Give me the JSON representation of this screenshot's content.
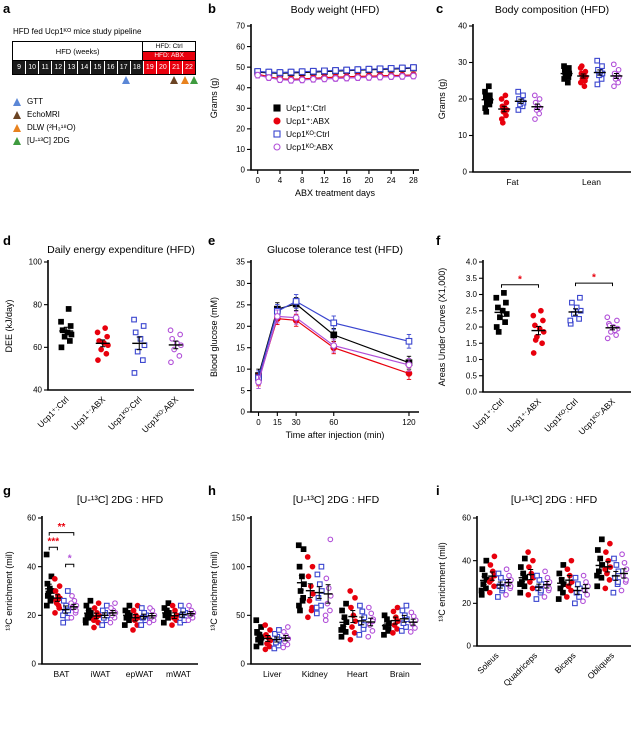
{
  "figure": {
    "bg": "#ffffff"
  },
  "groups": [
    {
      "name": "Ucp1⁺:Ctrl",
      "marker": "square",
      "fill": "solid",
      "color": "#000000"
    },
    {
      "name": "Ucp1⁺:ABX",
      "marker": "circle",
      "fill": "solid",
      "color": "#e8000d"
    },
    {
      "name": "Ucp1ᴷᴼ:Ctrl",
      "marker": "square",
      "fill": "open",
      "color": "#3a45cf"
    },
    {
      "name": "Ucp1ᴷᴼ:ABX",
      "marker": "circle",
      "fill": "open",
      "color": "#b14fd8"
    }
  ],
  "pipeline": {
    "panel": "a",
    "title": "HFD fed Ucp1ᴷᴼ mice study pipeline",
    "weeks_label": "HFD (weeks)",
    "ctrl_label": "HFD: Ctrl",
    "abx_label": "HFD: ABX",
    "weeks_black": [
      "9",
      "10",
      "11",
      "12",
      "13",
      "14",
      "15",
      "16",
      "17",
      "18"
    ],
    "weeks_red": [
      "19",
      "20",
      "21",
      "22"
    ],
    "timeline_markers": [
      {
        "name": "GTT",
        "x_pct": 62,
        "color": "#5b87d6"
      },
      {
        "name": "EchoMRI",
        "x_pct": 88,
        "color": "#6b4423"
      },
      {
        "name": "DLW",
        "x_pct": 94,
        "color": "#e8821e"
      },
      {
        "name": "2DG",
        "x_pct": 99,
        "color": "#3f9b3f"
      }
    ],
    "legend": [
      {
        "label": "GTT",
        "color": "#5b87d6"
      },
      {
        "label": "EchoMRI",
        "color": "#6b4423"
      },
      {
        "label": "DLW (²H₃¹⁸O)",
        "color": "#e8821e"
      },
      {
        "label": "[U-¹³C] 2DG",
        "color": "#3f9b3f"
      }
    ]
  },
  "chart_data": [
    {
      "panel": "b",
      "type": "line",
      "title": "Body weight (HFD)",
      "xlabel": "ABX treatment days",
      "ylabel": "Grams (g)",
      "xlim": [
        -1.2,
        29
      ],
      "xticks": [
        0,
        4,
        8,
        12,
        16,
        20,
        24,
        28
      ],
      "ylim": [
        0,
        70
      ],
      "yticks": [
        0,
        10,
        20,
        30,
        40,
        50,
        60,
        70
      ],
      "x": [
        0,
        2,
        4,
        6,
        8,
        10,
        12,
        14,
        16,
        18,
        20,
        22,
        24,
        26,
        28
      ],
      "legend": true,
      "series": [
        {
          "group": 0,
          "err": 1.3,
          "values": [
            47.6,
            47.2,
            47.0,
            47.2,
            47.4,
            47.6,
            47.9,
            48.1,
            48.3,
            48.5,
            48.7,
            48.9,
            49.1,
            49.3,
            49.6
          ]
        },
        {
          "group": 1,
          "err": 1.3,
          "values": [
            46.6,
            45.3,
            44.4,
            44.1,
            44.3,
            44.6,
            44.9,
            45.1,
            45.3,
            45.5,
            45.6,
            45.8,
            45.9,
            46.0,
            46.2
          ]
        },
        {
          "group": 2,
          "err": 1.4,
          "values": [
            47.9,
            47.6,
            47.4,
            47.6,
            47.8,
            48.0,
            48.2,
            48.4,
            48.6,
            48.8,
            49.0,
            49.2,
            49.4,
            49.6,
            49.8
          ]
        },
        {
          "group": 3,
          "err": 1.4,
          "values": [
            46.1,
            44.9,
            43.9,
            43.6,
            43.8,
            44.1,
            44.3,
            44.5,
            44.7,
            44.9,
            45.0,
            45.2,
            45.4,
            45.5,
            45.7
          ]
        }
      ]
    },
    {
      "panel": "c",
      "type": "dot",
      "title": "Body composition (HFD)",
      "ylabel": "Grams (g)",
      "ylim": [
        0,
        40
      ],
      "yticks": [
        0,
        10,
        20,
        30,
        40
      ],
      "categories": [
        "Fat",
        "Lean"
      ],
      "values": [
        [
          [
            17.5,
            18.5,
            19.0,
            19.5,
            20.0,
            20.5,
            21.0,
            22.0,
            23.5,
            16.5
          ],
          [
            14.5,
            15.5,
            16.5,
            17.0,
            17.5,
            18.0,
            19.0,
            20.0,
            21.0,
            13.5
          ],
          [
            17.0,
            18.0,
            18.5,
            19.0,
            19.5,
            20.0,
            21.0,
            22.0
          ],
          [
            14.5,
            16.0,
            17.0,
            17.5,
            18.0,
            19.0,
            20.0,
            21.0
          ]
        ],
        [
          [
            25.5,
            26.0,
            26.5,
            27.0,
            27.5,
            28.0,
            28.5,
            29.0,
            24.5,
            27.2
          ],
          [
            24.5,
            25.0,
            25.5,
            26.0,
            26.5,
            27.0,
            27.5,
            28.5,
            23.5,
            29.0
          ],
          [
            24.0,
            25.5,
            26.5,
            27.0,
            27.5,
            28.0,
            29.0,
            30.5
          ],
          [
            23.5,
            24.5,
            25.5,
            26.0,
            26.5,
            27.0,
            28.0,
            29.5
          ]
        ]
      ]
    },
    {
      "panel": "d",
      "type": "dot",
      "single": true,
      "rotate": 45,
      "title": "Daily energy expenditure (HFD)",
      "ylabel": "DEE (kJ/day)",
      "ylim": [
        40,
        100
      ],
      "yticks": [
        40,
        60,
        80,
        100
      ],
      "categories": [
        "Ucp1⁺:Ctrl",
        "Ucp1⁺:ABX",
        "Ucp1ᴷᴼ:Ctrl",
        "Ucp1ᴷᴼ:ABX"
      ],
      "values": [
        [
          60,
          63,
          65,
          66,
          67,
          68,
          70,
          72,
          78
        ],
        [
          54,
          57,
          59,
          61,
          62,
          63,
          65,
          67,
          69
        ],
        [
          48,
          54,
          58,
          61,
          64,
          67,
          70,
          73
        ],
        [
          53,
          56,
          59,
          61,
          62,
          64,
          66,
          68
        ]
      ]
    },
    {
      "panel": "e",
      "type": "line",
      "title": "Glucose tolerance test (HFD)",
      "xlabel": "Time after injection (min)",
      "ylabel": "Blood glucose (mM)",
      "xlim": [
        -6,
        128
      ],
      "xticks": [
        0,
        15,
        30,
        60,
        120
      ],
      "ylim": [
        0,
        35
      ],
      "yticks": [
        0,
        5,
        10,
        15,
        20,
        25,
        30,
        35
      ],
      "x": [
        0,
        15,
        30,
        60,
        120
      ],
      "series": [
        {
          "group": 0,
          "err": 1.5,
          "values": [
            8.5,
            24.0,
            25.2,
            18.0,
            11.5
          ]
        },
        {
          "group": 1,
          "err": 1.4,
          "values": [
            7.5,
            21.8,
            21.4,
            15.0,
            9.0
          ]
        },
        {
          "group": 2,
          "err": 1.6,
          "values": [
            8.0,
            23.5,
            25.8,
            20.8,
            16.5
          ]
        },
        {
          "group": 3,
          "err": 1.5,
          "values": [
            7.0,
            22.3,
            22.0,
            15.5,
            11.0
          ]
        }
      ]
    },
    {
      "panel": "f",
      "type": "dot",
      "single": true,
      "rotate": 45,
      "title": "",
      "ylabel": "Areas Under Curves (X1,000)",
      "ylim": [
        0,
        4
      ],
      "yticks": [
        0,
        0.5,
        1,
        1.5,
        2,
        2.5,
        3,
        3.5,
        4
      ],
      "ydec": 1,
      "categories": [
        "Ucp1⁺:Ctrl",
        "Ucp1⁺:ABX",
        "Ucp1ᴷᴼ:Ctrl",
        "Ucp1ᴷᴼ:ABX"
      ],
      "values": [
        [
          2.0,
          2.15,
          2.3,
          2.4,
          2.5,
          2.6,
          2.75,
          2.9,
          3.05,
          1.85
        ],
        [
          1.2,
          1.5,
          1.7,
          1.85,
          1.95,
          2.05,
          2.2,
          2.35,
          2.5,
          1.6
        ],
        [
          2.1,
          2.25,
          2.4,
          2.5,
          2.6,
          2.75,
          2.9,
          2.2
        ],
        [
          1.65,
          1.75,
          1.85,
          1.95,
          2.0,
          2.1,
          2.2,
          2.3,
          1.9,
          2.05
        ]
      ],
      "sig": [
        {
          "from": 0,
          "to": 1,
          "y": 3.3,
          "label": "*",
          "color": "#e8000d"
        },
        {
          "from": 2,
          "to": 3,
          "y": 3.35,
          "label": "*",
          "color": "#e8000d"
        }
      ]
    },
    {
      "panel": "g",
      "type": "dot",
      "title": "[U-¹³C] 2DG : HFD",
      "ylabel": "¹³C enrichment (mil)",
      "ylim": [
        0,
        60
      ],
      "yticks": [
        0,
        20,
        40,
        60
      ],
      "categories": [
        "BAT",
        "iWAT",
        "epWAT",
        "mWAT"
      ],
      "values": [
        [
          [
            24,
            27,
            29,
            30,
            31,
            33,
            36,
            45,
            26,
            28
          ],
          [
            21,
            23,
            25,
            27,
            28,
            30,
            32,
            35,
            24,
            26
          ],
          [
            17,
            19,
            21,
            22,
            24,
            26,
            30,
            20
          ],
          [
            19,
            21,
            23,
            24,
            26,
            28,
            22,
            25
          ]
        ],
        [
          [
            17,
            19,
            20,
            21,
            22,
            24,
            26,
            18
          ],
          [
            15,
            17,
            19,
            20,
            21,
            23,
            25,
            18
          ],
          [
            16,
            18,
            19,
            20,
            21,
            22,
            24
          ],
          [
            17,
            19,
            20,
            21,
            22,
            23,
            25
          ]
        ],
        [
          [
            16,
            18,
            19,
            20,
            21,
            22,
            24
          ],
          [
            14,
            16,
            18,
            19,
            20,
            22,
            24
          ],
          [
            16,
            18,
            19,
            20,
            21,
            23
          ],
          [
            17,
            18,
            19,
            20,
            22,
            23
          ]
        ],
        [
          [
            17,
            19,
            20,
            21,
            22,
            23,
            25
          ],
          [
            16,
            18,
            19,
            20,
            22,
            24
          ],
          [
            17,
            18,
            20,
            21,
            22,
            24
          ],
          [
            18,
            19,
            20,
            21,
            22,
            24
          ]
        ]
      ],
      "sig": [
        {
          "cat": 0,
          "from": 0,
          "to": 1,
          "y": 48,
          "label": "***",
          "color": "#e8000d"
        },
        {
          "cat": 0,
          "from": 0,
          "to": 3,
          "y": 54,
          "label": "**",
          "color": "#e8000d"
        },
        {
          "cat": 0,
          "from": 2,
          "to": 3,
          "y": 41,
          "label": "*",
          "color": "#b14fd8"
        }
      ]
    },
    {
      "panel": "h",
      "type": "dot",
      "title": "[U-¹³C] 2DG : HFD",
      "ylabel": "¹³C enrichment (mil)",
      "ylim": [
        0,
        150
      ],
      "yticks": [
        0,
        50,
        100,
        150
      ],
      "categories": [
        "Liver",
        "Kidney",
        "Heart",
        "Brain"
      ],
      "values": [
        [
          [
            18,
            22,
            25,
            27,
            30,
            33,
            38,
            45
          ],
          [
            15,
            18,
            21,
            24,
            27,
            30,
            35,
            40
          ],
          [
            16,
            19,
            22,
            25,
            28,
            31,
            35
          ],
          [
            17,
            20,
            23,
            26,
            29,
            33,
            38
          ]
        ],
        [
          [
            60,
            68,
            75,
            82,
            90,
            100,
            118,
            122,
            65,
            55
          ],
          [
            48,
            58,
            65,
            72,
            80,
            90,
            100,
            110,
            55
          ],
          [
            52,
            60,
            68,
            75,
            82,
            92,
            100,
            58
          ],
          [
            45,
            55,
            62,
            70,
            78,
            88,
            128,
            50
          ]
        ],
        [
          [
            28,
            33,
            38,
            43,
            48,
            55,
            62,
            35
          ],
          [
            25,
            32,
            38,
            44,
            50,
            58,
            68,
            75
          ],
          [
            30,
            36,
            42,
            48,
            54,
            60,
            40
          ],
          [
            28,
            34,
            40,
            46,
            52,
            58,
            44
          ]
        ],
        [
          [
            30,
            34,
            38,
            42,
            46,
            50,
            36
          ],
          [
            32,
            36,
            40,
            44,
            48,
            54,
            58
          ],
          [
            34,
            38,
            42,
            46,
            50,
            55,
            60
          ],
          [
            33,
            37,
            41,
            45,
            49,
            53
          ]
        ]
      ]
    },
    {
      "panel": "i",
      "type": "dot",
      "rotate": 45,
      "title": "[U-¹³C] 2DG : HFD",
      "ylabel": "¹³C enrichment (mil)",
      "ylim": [
        0,
        60
      ],
      "yticks": [
        0,
        20,
        40,
        60
      ],
      "categories": [
        "Soleus",
        "Quadriceps",
        "Biceps",
        "Obliques"
      ],
      "values": [
        [
          [
            24,
            27,
            29,
            31,
            33,
            36,
            40,
            26
          ],
          [
            25,
            28,
            31,
            33,
            35,
            38,
            42,
            30
          ],
          [
            23,
            26,
            28,
            30,
            32,
            34,
            27
          ],
          [
            24,
            27,
            29,
            31,
            33,
            36,
            28
          ]
        ],
        [
          [
            25,
            28,
            30,
            32,
            34,
            37,
            41,
            29
          ],
          [
            24,
            27,
            30,
            32,
            34,
            37,
            40,
            44
          ],
          [
            22,
            25,
            27,
            29,
            31,
            33,
            26
          ],
          [
            23,
            26,
            28,
            30,
            32,
            35,
            27
          ]
        ],
        [
          [
            22,
            25,
            27,
            29,
            31,
            34,
            38
          ],
          [
            23,
            26,
            28,
            30,
            33,
            36,
            40
          ],
          [
            20,
            23,
            25,
            27,
            29,
            32
          ],
          [
            21,
            24,
            26,
            28,
            30,
            33
          ]
        ],
        [
          [
            28,
            32,
            35,
            38,
            41,
            45,
            50,
            33
          ],
          [
            27,
            31,
            34,
            37,
            40,
            44,
            48,
            36
          ],
          [
            25,
            29,
            32,
            35,
            38,
            41,
            30
          ],
          [
            26,
            30,
            33,
            36,
            39,
            43,
            31
          ]
        ]
      ]
    }
  ]
}
